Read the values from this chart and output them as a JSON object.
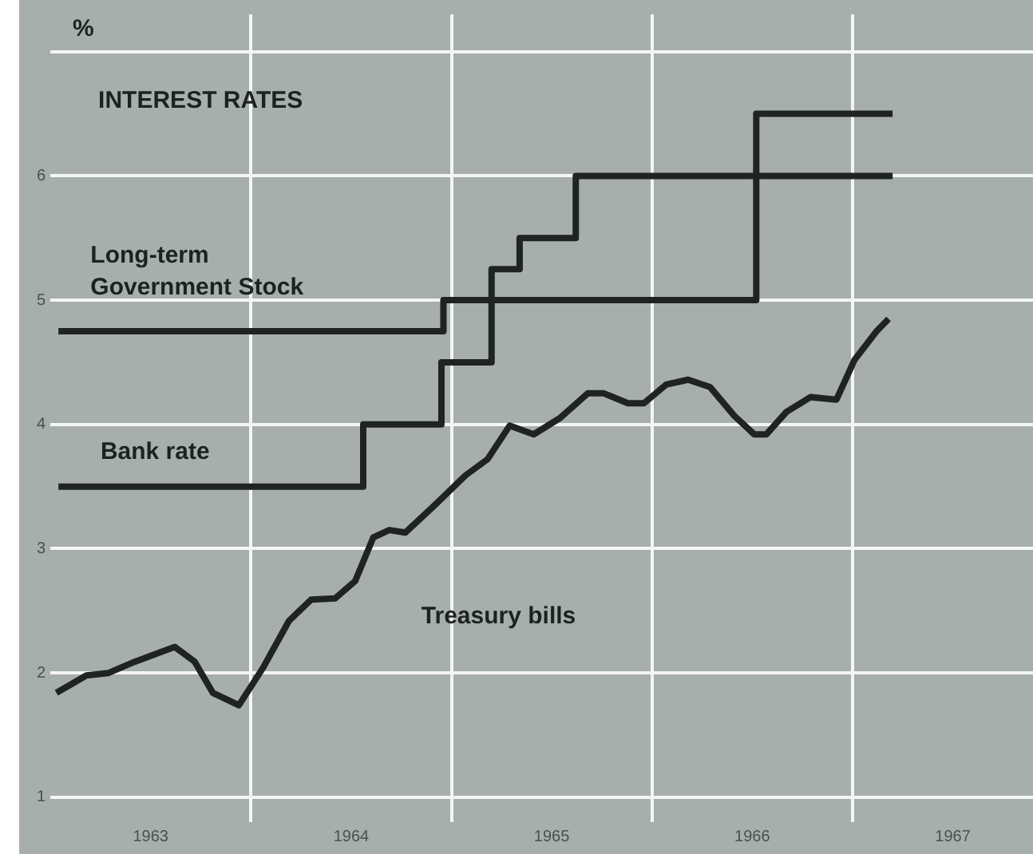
{
  "chart_data": {
    "type": "line",
    "title": "INTEREST RATES",
    "ylabel": "%",
    "xlim": [
      1963,
      1967.9
    ],
    "xticks": [
      {
        "value": 1963.5,
        "label": "1963"
      },
      {
        "value": 1964,
        "label": null
      },
      {
        "value": 1964.5,
        "label": "1964"
      },
      {
        "value": 1965,
        "label": null
      },
      {
        "value": 1965.5,
        "label": "1965"
      },
      {
        "value": 1966,
        "label": null
      },
      {
        "value": 1966.5,
        "label": "1966"
      },
      {
        "value": 1967,
        "label": null
      },
      {
        "value": 1967.5,
        "label": "1967"
      }
    ],
    "ylim": [
      0.8,
      7.3
    ],
    "yticks": [
      1,
      2,
      3,
      4,
      5,
      6,
      {
        "value": 7,
        "label": null
      }
    ],
    "grid": true,
    "legend": false,
    "marker": "none",
    "line_style": "solid",
    "series": [
      {
        "name": "Long-term Government Stock",
        "type": "step",
        "color": "#1f2322",
        "x": [
          1963.04,
          1964.96,
          1966.52,
          1967.2
        ],
        "values": [
          4.75,
          5.0,
          6.5,
          6.5
        ]
      },
      {
        "name": "Bank rate",
        "type": "step",
        "color": "#1f2322",
        "x": [
          1963.04,
          1964.56,
          1964.95,
          1965.2,
          1965.34,
          1965.62,
          1967.2
        ],
        "values": [
          3.5,
          4.0,
          4.5,
          5.25,
          5.5,
          6.0,
          6.0
        ]
      },
      {
        "name": "Treasury bills",
        "color": "#1f2322",
        "x": [
          1963.03,
          1963.18,
          1963.29,
          1963.42,
          1963.62,
          1963.72,
          1963.81,
          1963.94,
          1964.06,
          1964.19,
          1964.3,
          1964.42,
          1964.52,
          1964.61,
          1964.69,
          1964.77,
          1964.91,
          1965.07,
          1965.18,
          1965.29,
          1965.41,
          1965.54,
          1965.68,
          1965.76,
          1965.88,
          1965.96,
          1966.07,
          1966.18,
          1966.29,
          1966.41,
          1966.51,
          1966.57,
          1966.67,
          1966.79,
          1966.92,
          1967.01,
          1967.12,
          1967.18
        ],
        "values": [
          1.84,
          1.98,
          2.0,
          2.09,
          2.21,
          2.09,
          1.84,
          1.74,
          2.04,
          2.42,
          2.59,
          2.6,
          2.74,
          3.09,
          3.15,
          3.13,
          3.34,
          3.59,
          3.72,
          3.99,
          3.92,
          4.05,
          4.25,
          4.25,
          4.17,
          4.17,
          4.32,
          4.36,
          4.3,
          4.07,
          3.92,
          3.92,
          4.1,
          4.22,
          4.2,
          4.52,
          4.75,
          4.85
        ]
      }
    ]
  }
}
